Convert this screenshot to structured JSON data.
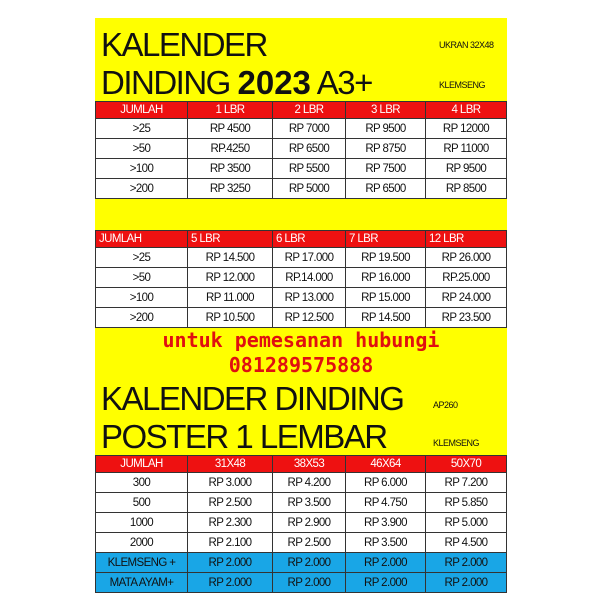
{
  "section1": {
    "title_line1": "KALENDER",
    "title_line2a": "DINDING ",
    "title_year": "2023",
    "title_line2b": " A3+",
    "size_note": "UKRAN 32X48",
    "binding_note": "KLEMSENG",
    "headers": [
      "JUMLAH",
      "1 LBR",
      "2 LBR",
      "3 LBR",
      "4 LBR"
    ],
    "rows": [
      [
        ">25",
        "RP 4500",
        "RP 7000",
        "RP 9500",
        "RP 12000"
      ],
      [
        ">50",
        "RP.4250",
        "RP 6500",
        "RP 8750",
        "RP 11000"
      ],
      [
        ">100",
        "RP 3500",
        "RP 5500",
        "RP 7500",
        "RP 9500"
      ],
      [
        ">200",
        "RP 3250",
        "RP 5000",
        "RP 6500",
        "RP 8500"
      ]
    ]
  },
  "section2": {
    "headers": [
      "JUMLAH",
      "5 LBR",
      "6 LBR",
      "7 LBR",
      "12 LBR"
    ],
    "rows": [
      [
        ">25",
        "RP 14.500",
        "RP 17.000",
        "RP 19.500",
        "RP 26.000"
      ],
      [
        ">50",
        "RP 12.000",
        "RP.14.000",
        "RP 16.000",
        "RP.25.000"
      ],
      [
        ">100",
        "RP 11.000",
        "RP 13.000",
        "RP 15.000",
        "RP 24.000"
      ],
      [
        ">200",
        "RP 10.500",
        "RP 12.500",
        "RP 14.500",
        "RP 23.500"
      ]
    ]
  },
  "contact": {
    "line1": "untuk pemesanan hubungi",
    "phone": "081289575888"
  },
  "section3": {
    "title_line1": "KALENDER DINDING",
    "title_line2": "POSTER 1 LEMBAR",
    "paper_note": "AP260",
    "binding_note": "KLEMSENG",
    "headers": [
      "JUMLAH",
      "31X48",
      "38X53",
      "46X64",
      "50X70"
    ],
    "rows": [
      [
        "300",
        "RP 3.000",
        "RP 4.200",
        "RP 6.000",
        "RP 7.200"
      ],
      [
        "500",
        "RP 2.500",
        "RP 3.500",
        "RP 4.750",
        "RP 5.850"
      ],
      [
        "1000",
        "RP 2.300",
        "RP 2.900",
        "RP 3.900",
        "RP 5.000"
      ],
      [
        "2000",
        "RP 2.100",
        "RP 2.500",
        "RP 3.500",
        "RP 4.500"
      ]
    ],
    "extras": [
      [
        "KLEMSENG +",
        "RP 2.000",
        "RP 2.000",
        "RP 2.000",
        "RP 2.000"
      ],
      [
        "MATA AYAM+",
        "RP 2.000",
        "RP 2.000",
        "RP 2.000",
        "RP 2.000"
      ]
    ]
  },
  "colors": {
    "background": "#ffff00",
    "header": "#ee1111",
    "extras": "#19a6e6",
    "contact": "#e01010"
  }
}
